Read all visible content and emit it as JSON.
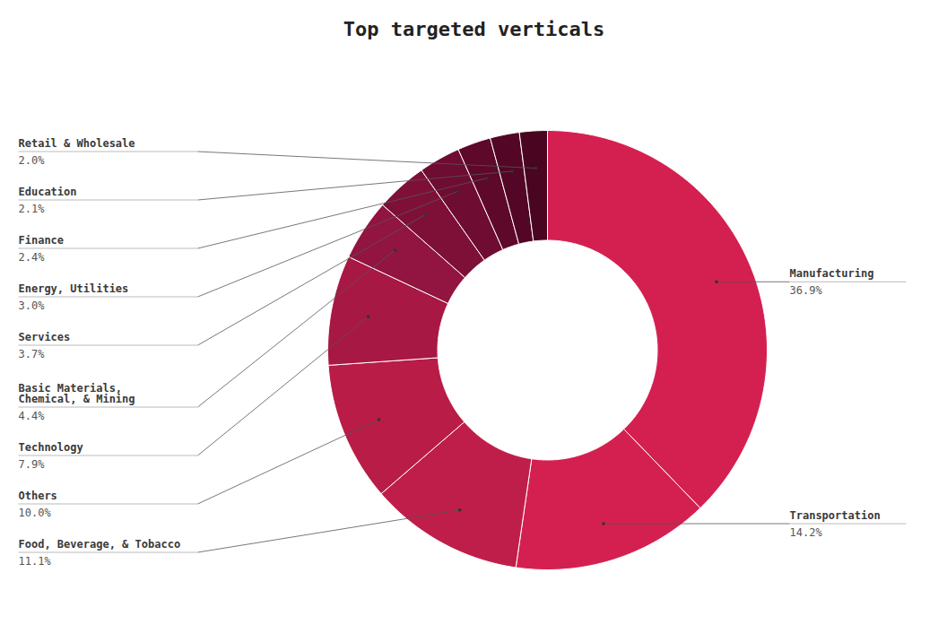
{
  "chart_data": {
    "type": "donut",
    "title": "Top targeted verticals",
    "categories": [
      "Manufacturing",
      "Transportation",
      "Food, Beverage, & Tobacco",
      "Others",
      "Technology",
      "Basic Materials,\nChemical, & Mining",
      "Services",
      "Energy, Utilities",
      "Finance",
      "Education",
      "Retail & Wholesale"
    ],
    "values": [
      36.9,
      14.2,
      11.1,
      10.0,
      7.9,
      4.4,
      3.7,
      3.0,
      2.4,
      2.1,
      2.0
    ],
    "value_labels": [
      "36.9%",
      "14.2%",
      "11.1%",
      "10.0%",
      "7.9%",
      "4.4%",
      "3.7%",
      "3.0%",
      "2.4%",
      "2.1%",
      "2.0%"
    ],
    "colors": [
      "#d42050",
      "#d42050",
      "#c01e4a",
      "#b81c47",
      "#a81844",
      "#921440",
      "#7e1038",
      "#6e0c32",
      "#5e082a",
      "#530625",
      "#4a0520"
    ],
    "data_labels": true
  }
}
